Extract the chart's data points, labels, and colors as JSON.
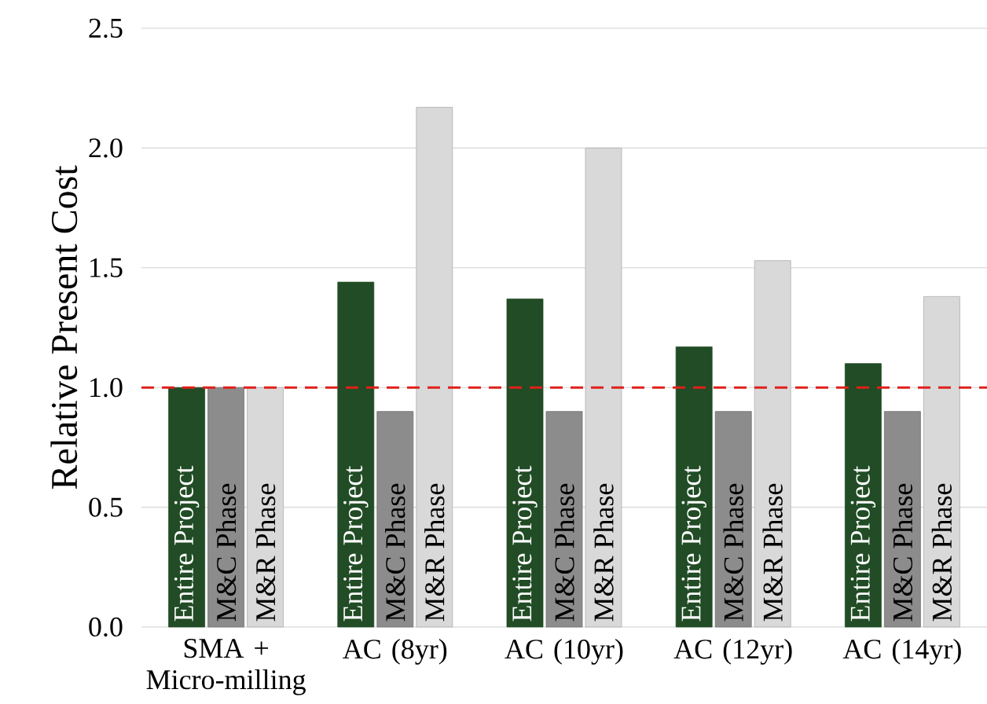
{
  "chart_data": {
    "type": "bar",
    "ylabel": "Relative Present Cost",
    "categories": [
      "SMA + Micro-milling",
      "AC (8yr)",
      "AC (10yr)",
      "AC (12yr)",
      "AC (14yr)"
    ],
    "series": [
      {
        "name": "Entire Project",
        "color": "#214c25",
        "values": [
          1.0,
          1.44,
          1.37,
          1.17,
          1.1
        ]
      },
      {
        "name": "M&C Phase",
        "color": "#8c8c8c",
        "values": [
          1.0,
          0.9,
          0.9,
          0.9,
          0.9
        ]
      },
      {
        "name": "M&R Phase",
        "color": "#d9d9d9",
        "values": [
          1.0,
          2.17,
          2.0,
          1.53,
          1.38
        ]
      }
    ],
    "ylim": [
      0,
      2.5
    ],
    "yticks": [
      {
        "value": 0,
        "label": "0.0"
      },
      {
        "value": 0.5,
        "label": "0.5"
      },
      {
        "value": 1,
        "label": "1.0"
      },
      {
        "value": 1.5,
        "label": "1.5"
      },
      {
        "value": 2,
        "label": "2.0"
      },
      {
        "value": 2.5,
        "label": "2.5"
      }
    ],
    "grid": "y",
    "legend": false,
    "ref_lines": [
      {
        "axis": "y",
        "value": 1,
        "color": "#e0201b",
        "line_style": "dashed"
      }
    ]
  }
}
